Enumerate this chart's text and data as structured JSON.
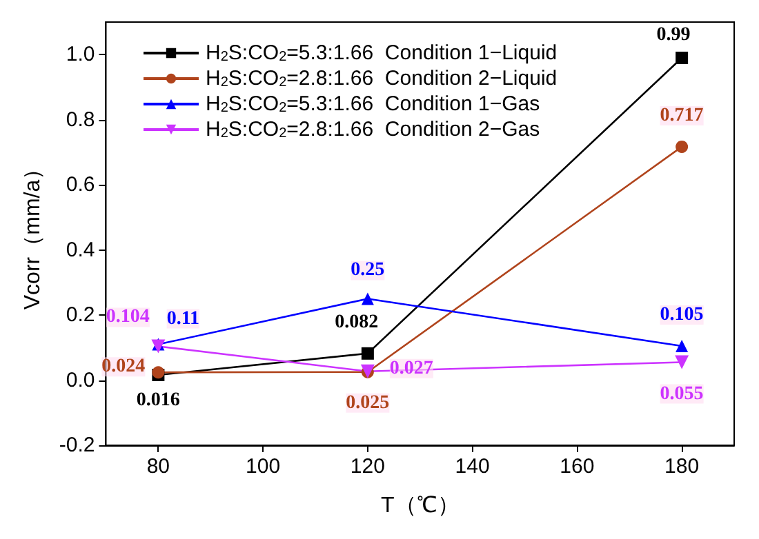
{
  "chart_data": {
    "type": "line",
    "xlabel": "T（℃）",
    "ylabel": "Vcorr（mm/a）",
    "x": [
      80,
      120,
      180
    ],
    "series": [
      {
        "name": "H$_{2}$S:CO$_{2}$=5.3:1.66  Condition 1−Liquid",
        "color": "#000000",
        "marker": "square",
        "values": [
          0.016,
          0.082,
          0.99
        ]
      },
      {
        "name": "H$_{2}$S:CO$_{2}$=2.8:1.66  Condition 2−Liquid",
        "color": "#b0441c",
        "marker": "circle",
        "values": [
          0.024,
          0.025,
          0.717
        ]
      },
      {
        "name": "H$_{2}$S:CO$_{2}$=5.3:1.66  Condition 1−Gas",
        "color": "#0000ff",
        "marker": "triangle",
        "values": [
          0.11,
          0.25,
          0.105
        ]
      },
      {
        "name": "H$_{2}$S:CO$_{2}$=2.8:1.66  Condition 2−Gas",
        "color": "#cc33ff",
        "marker": "triangle-down",
        "values": [
          0.104,
          0.027,
          0.055
        ]
      }
    ],
    "xlim": [
      70,
      190
    ],
    "xticks": [
      80,
      100,
      120,
      140,
      160,
      180
    ],
    "ylim": [
      -0.2,
      1.1
    ],
    "yticks": [
      -0.2,
      {
        "value": 0,
        "label": "0.0"
      },
      0.2,
      0.4,
      0.6,
      0.8,
      {
        "value": 1,
        "label": "1.0"
      }
    ],
    "data_labels": true,
    "legend": "top left",
    "grid": false,
    "line_style": "solid"
  }
}
